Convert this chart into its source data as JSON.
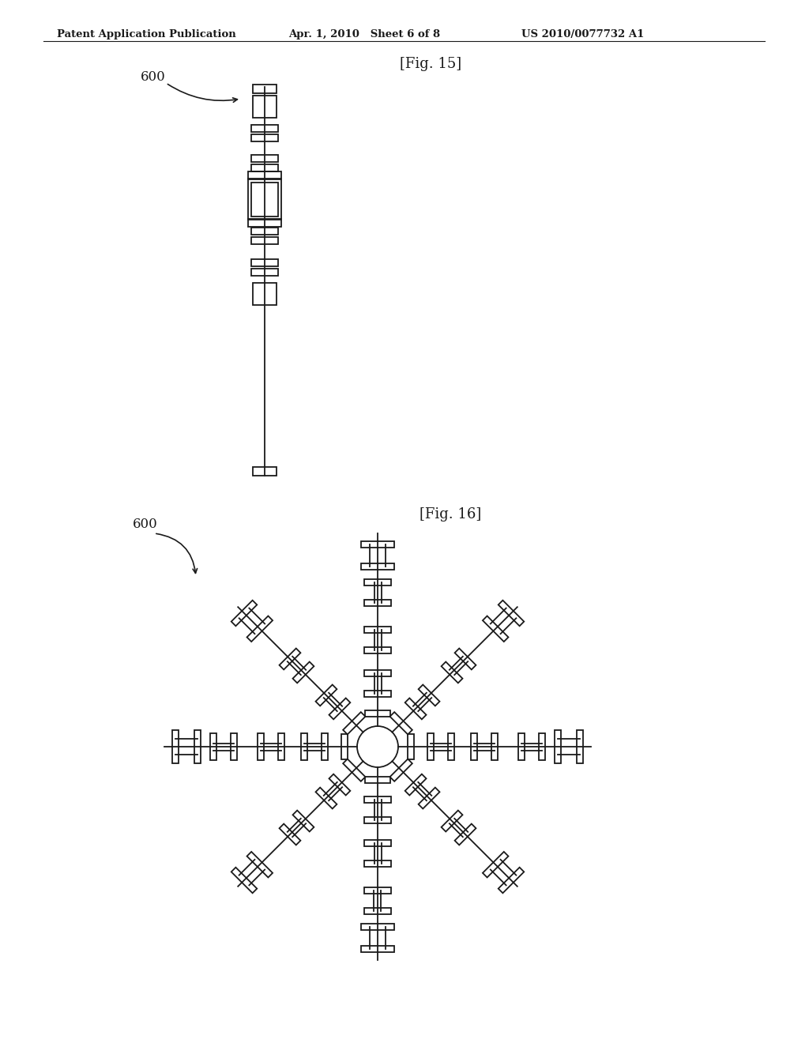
{
  "header_left": "Patent Application Publication",
  "header_mid": "Apr. 1, 2010   Sheet 6 of 8",
  "header_right": "US 2010/0077732 A1",
  "fig15_label": "[Fig. 15]",
  "fig16_label": "[Fig. 16]",
  "label_600": "600",
  "bg_color": "#ffffff",
  "line_color": "#1a1a1a"
}
